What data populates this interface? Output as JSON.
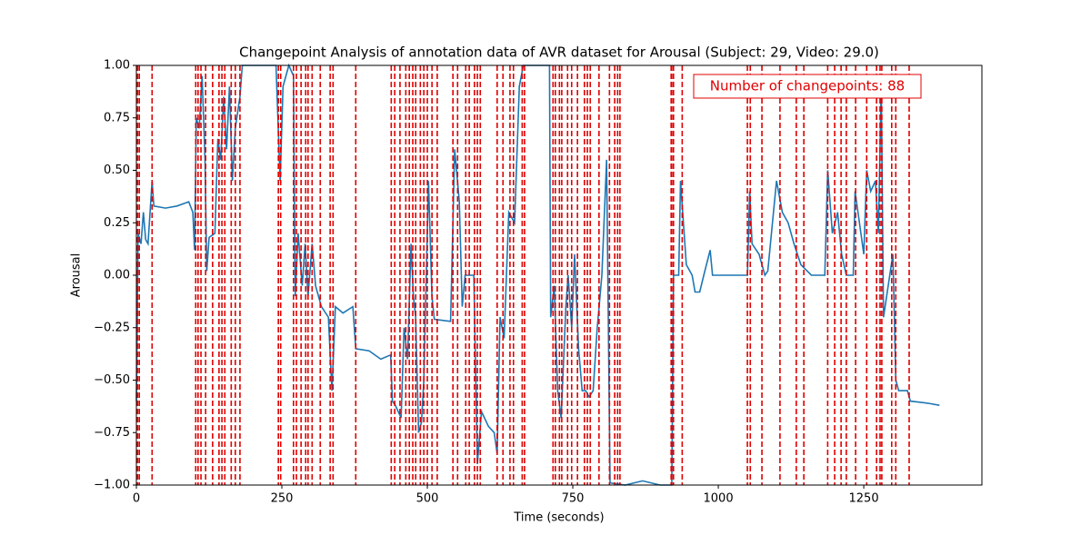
{
  "chart_data": {
    "type": "line",
    "title": "Changepoint Analysis of annotation data of AVR dataset for Arousal (Subject: 29, Video: 29.0)",
    "x_label": "Time (seconds)",
    "y_label": "Arousal",
    "annotation": "Number of changepoints: 88",
    "xlim": [
      0,
      1453
    ],
    "ylim": [
      -1,
      1
    ],
    "xticks": [
      0,
      250,
      500,
      750,
      1000,
      1250
    ],
    "yticks": [
      {
        "value": -1,
        "label": "−1.00"
      },
      {
        "value": -0.75,
        "label": "−0.75"
      },
      {
        "value": -0.5,
        "label": "−0.50"
      },
      {
        "value": -0.25,
        "label": "−0.25"
      },
      {
        "value": 0,
        "label": "0.00"
      },
      {
        "value": 0.25,
        "label": "0.25"
      },
      {
        "value": 0.5,
        "label": "0.50"
      },
      {
        "value": 0.75,
        "label": "0.75"
      },
      {
        "value": 1,
        "label": "1.00"
      }
    ],
    "x": [
      0,
      3,
      8,
      12,
      16,
      20,
      27,
      30,
      50,
      70,
      90,
      97,
      100,
      103,
      108,
      113,
      118,
      121,
      125,
      135,
      140,
      145,
      150,
      155,
      160,
      165,
      170,
      178,
      182,
      240,
      247,
      252,
      262,
      270,
      273,
      278,
      285,
      290,
      295,
      302,
      308,
      318,
      330,
      336,
      342,
      355,
      372,
      377,
      400,
      420,
      437,
      440,
      445,
      455,
      460,
      466,
      472,
      476,
      480,
      485,
      490,
      494,
      502,
      508,
      512,
      540,
      547,
      555,
      560,
      565,
      580,
      586,
      593,
      605,
      615,
      620,
      625,
      632,
      640,
      650,
      658,
      665,
      710,
      712,
      718,
      724,
      730,
      738,
      742,
      748,
      753,
      760,
      766,
      772,
      778,
      785,
      792,
      800,
      808,
      814,
      840,
      870,
      900,
      920,
      923,
      932,
      935,
      945,
      955,
      960,
      968,
      975,
      986,
      990,
      1050,
      1054,
      1058,
      1070,
      1080,
      1085,
      1100,
      1110,
      1120,
      1130,
      1142,
      1160,
      1183,
      1188,
      1196,
      1205,
      1212,
      1220,
      1232,
      1235,
      1245,
      1250,
      1255,
      1262,
      1270,
      1275,
      1280,
      1284,
      1300,
      1305,
      1310,
      1325,
      1330,
      1360,
      1380
    ],
    "series": [
      {
        "color": "#1f77b4",
        "values": [
          -0.6,
          0.2,
          0.15,
          0.3,
          0.17,
          0.15,
          0.45,
          0.33,
          0.32,
          0.33,
          0.35,
          0.3,
          0.12,
          0.75,
          0.7,
          0.95,
          0.55,
          0.02,
          0.18,
          0.2,
          0.65,
          0.55,
          0.85,
          0.6,
          0.9,
          0.45,
          0.7,
          0.85,
          1.0,
          1.0,
          0.45,
          0.9,
          1.0,
          0.95,
          -0.1,
          0.2,
          -0.05,
          0.15,
          -0.1,
          0.15,
          -0.05,
          -0.15,
          -0.2,
          -0.55,
          -0.15,
          -0.18,
          -0.15,
          -0.35,
          -0.36,
          -0.4,
          -0.38,
          -0.6,
          -0.62,
          -0.68,
          -0.25,
          -0.4,
          0.15,
          -0.1,
          -0.2,
          -0.75,
          -0.7,
          -0.5,
          0.45,
          -0.1,
          -0.21,
          -0.22,
          0.6,
          0.35,
          -0.15,
          0.0,
          0.0,
          -0.9,
          -0.65,
          -0.72,
          -0.75,
          -0.85,
          -0.2,
          -0.3,
          0.3,
          0.25,
          0.9,
          1.0,
          1.0,
          -0.2,
          -0.05,
          -0.55,
          -0.68,
          -0.15,
          0.0,
          -0.25,
          0.1,
          -0.35,
          -0.55,
          -0.55,
          -0.58,
          -0.55,
          -0.25,
          0.0,
          0.55,
          -0.99,
          -1.0,
          -0.98,
          -1.0,
          -1.0,
          0.0,
          0.0,
          0.45,
          0.05,
          0.0,
          -0.08,
          -0.08,
          0.0,
          0.12,
          0.0,
          0.0,
          0.4,
          0.15,
          0.1,
          0.0,
          0.02,
          0.45,
          0.3,
          0.25,
          0.15,
          0.05,
          0.0,
          0.0,
          0.5,
          0.2,
          0.3,
          0.1,
          0.0,
          0.0,
          0.4,
          0.2,
          0.1,
          0.5,
          0.4,
          0.45,
          0.2,
          0.9,
          -0.2,
          0.1,
          -0.5,
          -0.55,
          -0.55,
          -0.6,
          -0.61,
          -0.62
        ]
      }
    ],
    "changepoints": {
      "color": "#e00000",
      "values": [
        2,
        5,
        27,
        102,
        106,
        111,
        119,
        131,
        142,
        147,
        152,
        163,
        170,
        178,
        244,
        248,
        270,
        275,
        283,
        291,
        295,
        302,
        316,
        333,
        338,
        377,
        438,
        444,
        453,
        463,
        469,
        475,
        480,
        488,
        494,
        500,
        508,
        517,
        544,
        552,
        566,
        572,
        581,
        586,
        591,
        620,
        630,
        642,
        648,
        663,
        667,
        716,
        720,
        727,
        731,
        741,
        748,
        758,
        770,
        775,
        780,
        795,
        813,
        822,
        827,
        831,
        919,
        920,
        923,
        938,
        1050,
        1055,
        1075,
        1106,
        1134,
        1147,
        1188,
        1200,
        1211,
        1220,
        1236,
        1255,
        1272,
        1278,
        1281,
        1298,
        1305,
        1328
      ]
    }
  }
}
